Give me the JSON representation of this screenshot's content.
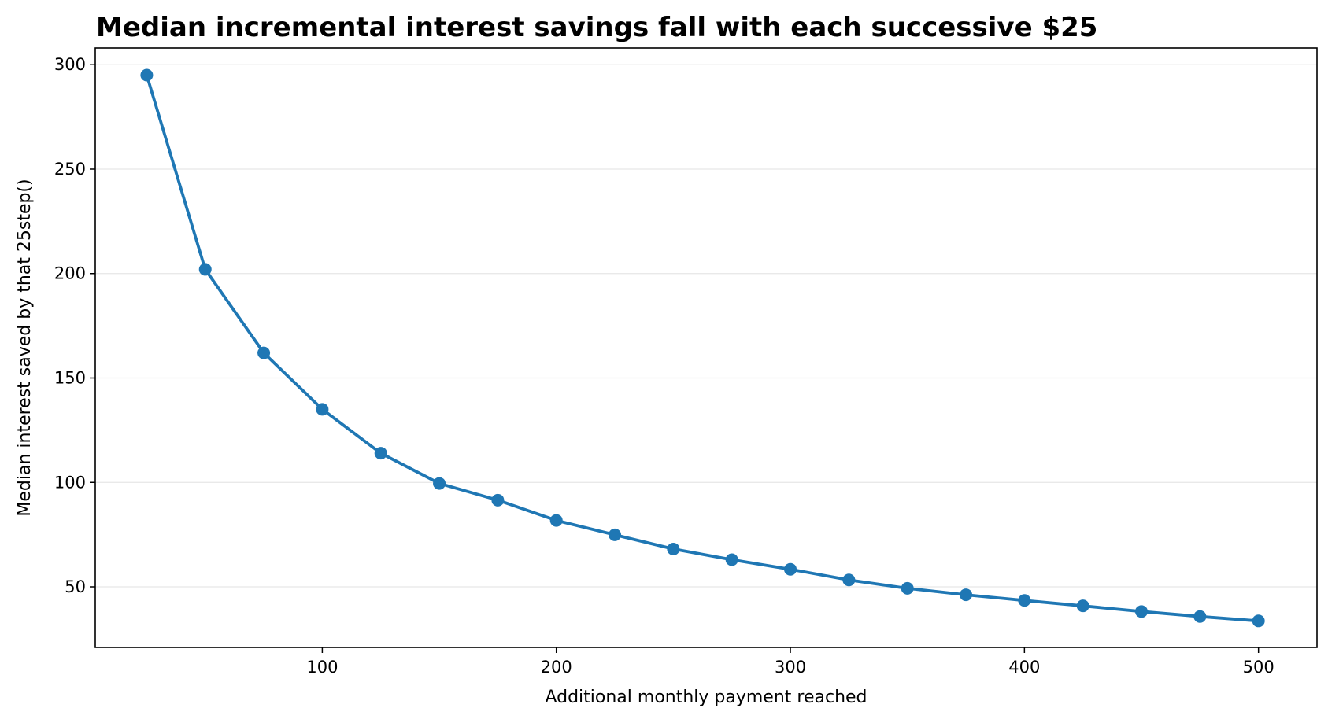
{
  "chart_data": {
    "type": "line",
    "title": "Median incremental interest savings fall with each successive $25",
    "xlabel": "Additional monthly payment reached",
    "ylabel": "Median interest saved by that $25 step ($)",
    "ylabel_rendered": "Median interest saved by that 25step()",
    "xlim": [
      3,
      525
    ],
    "ylim": [
      21,
      308
    ],
    "x_ticks": [
      100,
      200,
      300,
      400,
      500
    ],
    "y_ticks": [
      50,
      100,
      150,
      200,
      250,
      300
    ],
    "grid": "horizontal",
    "series": [
      {
        "color": "#1f77b4",
        "x": [
          25,
          50,
          75,
          100,
          125,
          150,
          175,
          200,
          225,
          250,
          275,
          300,
          325,
          350,
          375,
          400,
          425,
          450,
          475,
          500
        ],
        "y": [
          295,
          202,
          162,
          135,
          114,
          99.5,
          91.5,
          81.8,
          74.9,
          68.1,
          63,
          58.4,
          53.3,
          49.3,
          46.2,
          43.5,
          40.9,
          38.2,
          35.8,
          33.7
        ]
      }
    ]
  }
}
